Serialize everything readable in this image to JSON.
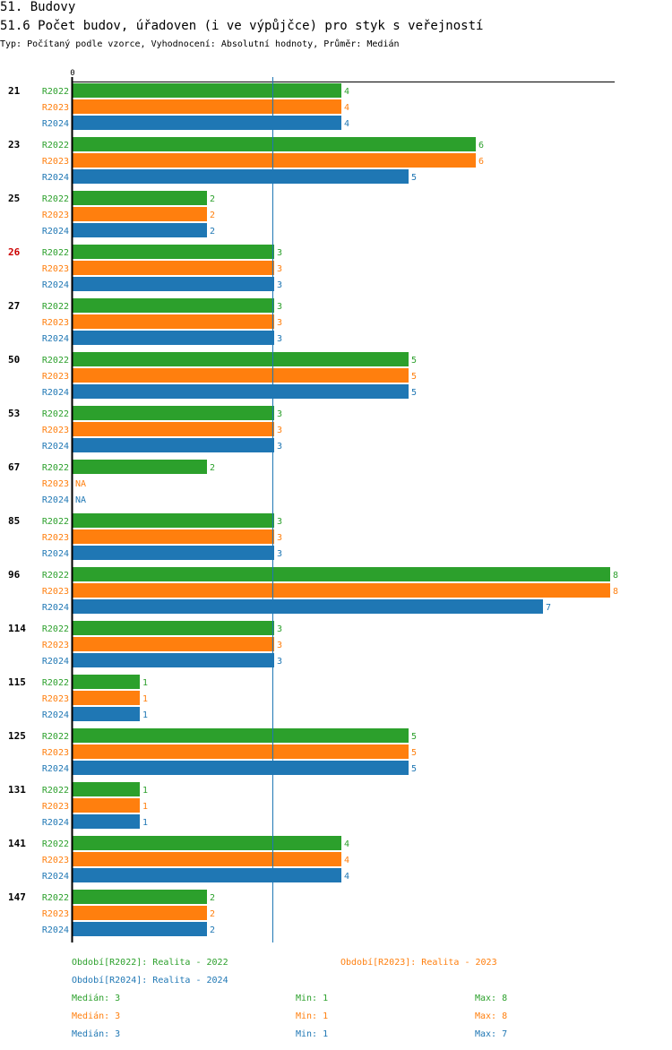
{
  "header": {
    "title": "51. Budovy",
    "subtitle": "51.6 Počet budov, úřadoven (i ve výpůjčce) pro styk s veřejností",
    "meta": "Typ: Počítaný podle vzorce, Vyhodnocení: Absolutní hodnoty, Průměr: Medián"
  },
  "colors": {
    "R2022": "#2ca02c",
    "R2023": "#ff7f0e",
    "R2024": "#1f77b4",
    "highlight": "#cc0000",
    "median_line": "#1f77b4"
  },
  "chart_data": {
    "type": "bar",
    "orientation": "horizontal",
    "axis_zero_label": "0",
    "xlim": [
      0,
      8
    ],
    "median_reference": 3,
    "categories": [
      "21",
      "23",
      "25",
      "26",
      "27",
      "50",
      "53",
      "67",
      "85",
      "96",
      "114",
      "115",
      "125",
      "131",
      "141",
      "147"
    ],
    "highlighted_category": "26",
    "series": [
      {
        "name": "R2022",
        "values": [
          4,
          6,
          2,
          3,
          3,
          5,
          3,
          2,
          3,
          8,
          3,
          1,
          5,
          1,
          4,
          2
        ]
      },
      {
        "name": "R2023",
        "values": [
          4,
          6,
          2,
          3,
          3,
          5,
          3,
          null,
          3,
          8,
          3,
          1,
          5,
          1,
          4,
          2
        ]
      },
      {
        "name": "R2024",
        "values": [
          4,
          5,
          2,
          3,
          3,
          5,
          3,
          null,
          3,
          7,
          3,
          1,
          5,
          1,
          4,
          2
        ]
      }
    ],
    "na_label": "NA"
  },
  "legend": {
    "r2022": "Období[R2022]: Realita - 2022",
    "r2023": "Období[R2023]: Realita - 2023",
    "r2024": "Období[R2024]: Realita - 2024"
  },
  "stats": [
    {
      "median": "Medián: 3",
      "min": "Min: 1",
      "max": "Max: 8"
    },
    {
      "median": "Medián: 3",
      "min": "Min: 1",
      "max": "Max: 8"
    },
    {
      "median": "Medián: 3",
      "min": "Min: 1",
      "max": "Max: 7"
    }
  ]
}
